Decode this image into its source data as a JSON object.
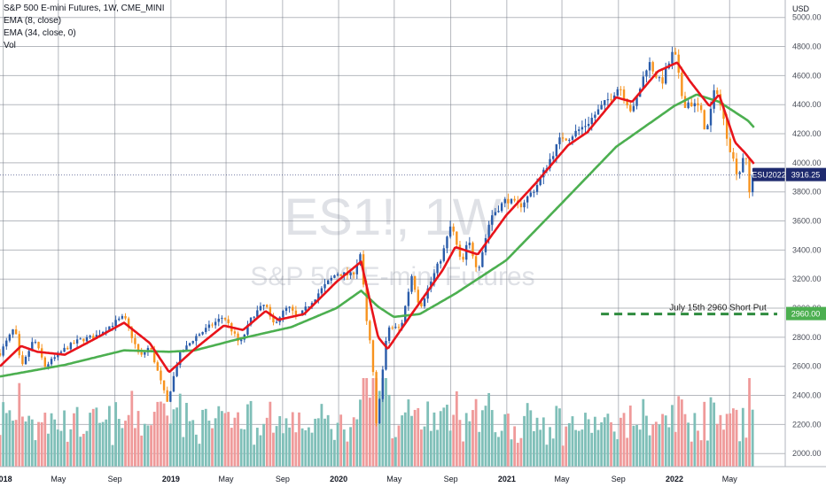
{
  "legend": {
    "title": "S&P 500 E-mini Futures, 1W, CME_MINI",
    "ema_fast": "EMA (8, close)",
    "ema_slow": "EMA (34, close, 0)",
    "volume": "Vol"
  },
  "watermark": {
    "symbol": "ES1!, 1W",
    "name": "S&P 500 E-mini Futures"
  },
  "colors": {
    "up": "#2a5caa",
    "down": "#f7931e",
    "ema_fast": "#e8141b",
    "ema_slow": "#4caf50",
    "vol_up": "#7fbfb8",
    "vol_down": "#ef9a9a",
    "grid": "#7a7f8a",
    "current_tag": "#1e2a6e",
    "put_line": "#2e8b3e"
  },
  "chart_data": {
    "type": "candlestick",
    "currency_label": "USD",
    "y_ticks": [
      "2000.00",
      "2200.00",
      "2400.00",
      "2600.00",
      "2800.00",
      "3000.00",
      "3200.00",
      "3400.00",
      "3600.00",
      "3800.00",
      "4000.00",
      "4200.00",
      "4400.00",
      "4600.00",
      "4800.00",
      "5000.00"
    ],
    "ylim": [
      1910,
      5120
    ],
    "x_ticks": [
      {
        "label": "2018",
        "date": "2018-01-01"
      },
      {
        "label": "May",
        "date": "2018-05-01"
      },
      {
        "label": "Sep",
        "date": "2018-09-01"
      },
      {
        "label": "2019",
        "date": "2019-01-01"
      },
      {
        "label": "May",
        "date": "2019-05-01"
      },
      {
        "label": "Sep",
        "date": "2019-09-01"
      },
      {
        "label": "2020",
        "date": "2020-01-01"
      },
      {
        "label": "May",
        "date": "2020-05-01"
      },
      {
        "label": "Sep",
        "date": "2020-09-01"
      },
      {
        "label": "2021",
        "date": "2021-01-01"
      },
      {
        "label": "May",
        "date": "2021-05-01"
      },
      {
        "label": "Sep",
        "date": "2021-09-01"
      },
      {
        "label": "2022",
        "date": "2022-01-01"
      },
      {
        "label": "May",
        "date": "2022-05-01"
      }
    ],
    "xlim": [
      "2017-12-25",
      "2022-08-30"
    ],
    "price_anchors": [
      [
        "2017-12-25",
        2690
      ],
      [
        "2018-01-26",
        2870
      ],
      [
        "2018-02-09",
        2580
      ],
      [
        "2018-03-09",
        2790
      ],
      [
        "2018-04-02",
        2600
      ],
      [
        "2018-05-15",
        2720
      ],
      [
        "2018-06-15",
        2780
      ],
      [
        "2018-07-20",
        2805
      ],
      [
        "2018-08-31",
        2900
      ],
      [
        "2018-09-21",
        2940
      ],
      [
        "2018-10-26",
        2660
      ],
      [
        "2018-11-16",
        2740
      ],
      [
        "2018-12-24",
        2350
      ],
      [
        "2019-01-18",
        2670
      ],
      [
        "2019-02-22",
        2800
      ],
      [
        "2019-04-26",
        2945
      ],
      [
        "2019-05-31",
        2750
      ],
      [
        "2019-06-28",
        2950
      ],
      [
        "2019-07-26",
        3030
      ],
      [
        "2019-08-09",
        2885
      ],
      [
        "2019-09-13",
        3010
      ],
      [
        "2019-10-04",
        2930
      ],
      [
        "2019-11-29",
        3145
      ],
      [
        "2019-12-27",
        3240
      ],
      [
        "2020-01-31",
        3225
      ],
      [
        "2020-02-19",
        3390
      ],
      [
        "2020-02-28",
        2955
      ],
      [
        "2020-03-13",
        2700
      ],
      [
        "2020-03-23",
        2200
      ],
      [
        "2020-04-17",
        2870
      ],
      [
        "2020-05-15",
        2860
      ],
      [
        "2020-06-08",
        3225
      ],
      [
        "2020-06-26",
        3005
      ],
      [
        "2020-08-14",
        3370
      ],
      [
        "2020-09-02",
        3580
      ],
      [
        "2020-09-25",
        3290
      ],
      [
        "2020-10-09",
        3470
      ],
      [
        "2020-10-30",
        3260
      ],
      [
        "2020-11-27",
        3630
      ],
      [
        "2020-12-31",
        3750
      ],
      [
        "2021-01-29",
        3700
      ],
      [
        "2021-03-05",
        3830
      ],
      [
        "2021-04-30",
        4180
      ],
      [
        "2021-05-14",
        4170
      ],
      [
        "2021-06-25",
        4270
      ],
      [
        "2021-08-27",
        4500
      ],
      [
        "2021-09-03",
        4530
      ],
      [
        "2021-10-01",
        4340
      ],
      [
        "2021-11-05",
        4700
      ],
      [
        "2021-12-03",
        4540
      ],
      [
        "2021-12-31",
        4780
      ],
      [
        "2022-01-21",
        4390
      ],
      [
        "2022-01-28",
        4420
      ],
      [
        "2022-02-25",
        4380
      ],
      [
        "2022-03-11",
        4200
      ],
      [
        "2022-04-01",
        4540
      ],
      [
        "2022-04-29",
        4130
      ],
      [
        "2022-05-20",
        3900
      ],
      [
        "2022-06-03",
        4100
      ],
      [
        "2022-06-17",
        3670
      ],
      [
        "2022-06-24",
        3916.25
      ]
    ],
    "ema_fast_anchors": [
      [
        "2017-12-25",
        2600
      ],
      [
        "2018-02-09",
        2740
      ],
      [
        "2018-03-16",
        2700
      ],
      [
        "2018-05-15",
        2680
      ],
      [
        "2018-07-20",
        2790
      ],
      [
        "2018-09-21",
        2900
      ],
      [
        "2018-11-16",
        2760
      ],
      [
        "2018-12-28",
        2560
      ],
      [
        "2019-02-22",
        2720
      ],
      [
        "2019-04-26",
        2880
      ],
      [
        "2019-06-07",
        2850
      ],
      [
        "2019-07-26",
        2980
      ],
      [
        "2019-08-23",
        2920
      ],
      [
        "2019-10-18",
        2960
      ],
      [
        "2019-12-27",
        3180
      ],
      [
        "2020-02-19",
        3320
      ],
      [
        "2020-03-27",
        2800
      ],
      [
        "2020-04-17",
        2720
      ],
      [
        "2020-06-08",
        2960
      ],
      [
        "2020-08-14",
        3260
      ],
      [
        "2020-09-11",
        3420
      ],
      [
        "2020-10-30",
        3370
      ],
      [
        "2020-12-31",
        3640
      ],
      [
        "2021-03-05",
        3860
      ],
      [
        "2021-05-14",
        4120
      ],
      [
        "2021-06-25",
        4210
      ],
      [
        "2021-08-27",
        4450
      ],
      [
        "2021-10-01",
        4420
      ],
      [
        "2021-11-26",
        4630
      ],
      [
        "2022-01-07",
        4690
      ],
      [
        "2022-02-04",
        4560
      ],
      [
        "2022-03-18",
        4390
      ],
      [
        "2022-04-08",
        4470
      ],
      [
        "2022-05-13",
        4140
      ],
      [
        "2022-06-03",
        4070
      ],
      [
        "2022-06-24",
        3990
      ]
    ],
    "ema_slow_anchors": [
      [
        "2017-12-25",
        2530
      ],
      [
        "2018-05-15",
        2610
      ],
      [
        "2018-09-21",
        2710
      ],
      [
        "2018-12-28",
        2700
      ],
      [
        "2019-02-22",
        2710
      ],
      [
        "2019-05-31",
        2790
      ],
      [
        "2019-09-20",
        2870
      ],
      [
        "2019-12-27",
        3000
      ],
      [
        "2020-02-19",
        3120
      ],
      [
        "2020-03-27",
        3010
      ],
      [
        "2020-04-30",
        2940
      ],
      [
        "2020-06-26",
        2960
      ],
      [
        "2020-09-11",
        3100
      ],
      [
        "2020-12-31",
        3330
      ],
      [
        "2021-04-30",
        3720
      ],
      [
        "2021-08-27",
        4110
      ],
      [
        "2021-12-31",
        4390
      ],
      [
        "2022-02-18",
        4470
      ],
      [
        "2022-04-08",
        4420
      ],
      [
        "2022-06-10",
        4290
      ],
      [
        "2022-06-24",
        4240
      ]
    ],
    "last_price": {
      "label": "ESU2022",
      "value": "3916.25",
      "y": 3916.25
    },
    "annotation": {
      "text": "July 15th 2960 Short Put",
      "level": 2960,
      "value_label": "2960.00",
      "x_start": "2021-07-25"
    }
  }
}
